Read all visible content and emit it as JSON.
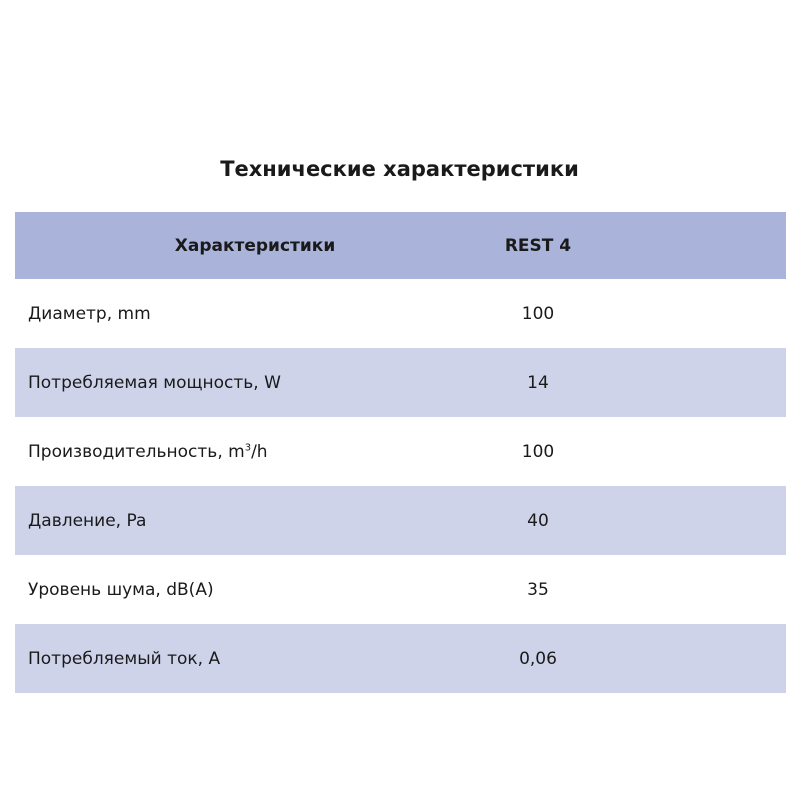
{
  "title": "Технические характеристики",
  "header": {
    "col1": "Характеристики",
    "col2": "REST 4"
  },
  "rows": [
    {
      "label": "Диаметр, mm",
      "value": "100"
    },
    {
      "label": "Потребляемая мощность, W",
      "value": "14"
    },
    {
      "label": "Производительность, m",
      "sup": "3",
      "suffix": "/h",
      "value": "100"
    },
    {
      "label": "Давление, Pa",
      "value": "40"
    },
    {
      "label": "Уровень шума, dB(A)",
      "value": "35"
    },
    {
      "label": "Потребляемый ток, A",
      "value": "0,06"
    }
  ],
  "colors": {
    "header": "#aab3d9",
    "shaded_row": "#ced3ea"
  }
}
